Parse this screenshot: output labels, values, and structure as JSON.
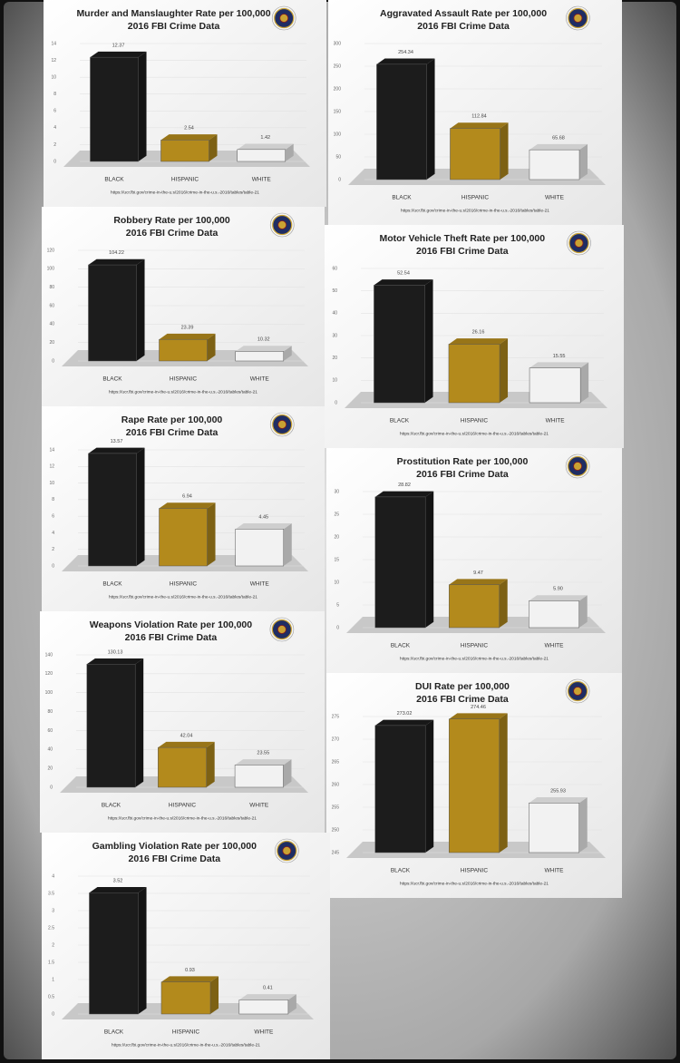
{
  "chart_data": [
    {
      "type": "bar",
      "title": "Murder and Manslaughter Rate per 100,000",
      "subtitle": "2016 FBI Crime Data",
      "categories": [
        "BLACK",
        "HISPANIC",
        "WHITE"
      ],
      "values": [
        12.37,
        2.54,
        1.42
      ],
      "colors": [
        "#1c1c1c",
        "#b38a1c",
        "#f2f2f2"
      ],
      "ylim": [
        0,
        14
      ],
      "yticks": [
        0,
        2,
        4,
        6,
        8,
        10,
        12,
        14
      ],
      "grid": true,
      "source": "https://ucr.fbi.gov/crime-in-the-u.s/2016/crime-in-the-u.s.-2016/tables/table-21"
    },
    {
      "type": "bar",
      "title": "Aggravated Assault Rate per 100,000",
      "subtitle": "2016 FBI Crime Data",
      "categories": [
        "BLACK",
        "HISPANIC",
        "WHITE"
      ],
      "values": [
        254.34,
        112.84,
        65.68
      ],
      "colors": [
        "#1c1c1c",
        "#b38a1c",
        "#f2f2f2"
      ],
      "ylim": [
        0,
        300
      ],
      "yticks": [
        0,
        50,
        100,
        150,
        200,
        250,
        300
      ],
      "grid": true,
      "source": "https://ucr.fbi.gov/crime-in-the-u.s/2016/crime-in-the-u.s.-2016/tables/table-21"
    },
    {
      "type": "bar",
      "title": "Robbery Rate per 100,000",
      "subtitle": "2016 FBI Crime Data",
      "categories": [
        "BLACK",
        "HISPANIC",
        "WHITE"
      ],
      "values": [
        104.22,
        23.39,
        10.32
      ],
      "colors": [
        "#1c1c1c",
        "#b38a1c",
        "#f2f2f2"
      ],
      "ylim": [
        0,
        120
      ],
      "yticks": [
        0,
        20,
        40,
        60,
        80,
        100,
        120
      ],
      "grid": true,
      "source": "https://ucr.fbi.gov/crime-in-the-u.s/2016/crime-in-the-u.s.-2016/tables/table-21"
    },
    {
      "type": "bar",
      "title": "Motor Vehicle Theft Rate per 100,000",
      "subtitle": "2016 FBI Crime Data",
      "categories": [
        "BLACK",
        "HISPANIC",
        "WHITE"
      ],
      "values": [
        52.54,
        26.16,
        15.55
      ],
      "colors": [
        "#1c1c1c",
        "#b38a1c",
        "#f2f2f2"
      ],
      "ylim": [
        0,
        60
      ],
      "yticks": [
        0,
        10,
        20,
        30,
        40,
        50,
        60
      ],
      "grid": true,
      "source": "https://ucr.fbi.gov/crime-in-the-u.s/2016/crime-in-the-u.s.-2016/tables/table-21"
    },
    {
      "type": "bar",
      "title": "Rape Rate per 100,000",
      "subtitle": "2016 FBI Crime Data",
      "categories": [
        "BLACK",
        "HISPANIC",
        "WHITE"
      ],
      "values": [
        13.57,
        6.94,
        4.45
      ],
      "colors": [
        "#1c1c1c",
        "#b38a1c",
        "#f2f2f2"
      ],
      "ylim": [
        0,
        14
      ],
      "yticks": [
        0,
        2,
        4,
        6,
        8,
        10,
        12,
        14
      ],
      "grid": true,
      "source": "https://ucr.fbi.gov/crime-in-the-u.s/2016/crime-in-the-u.s.-2016/tables/table-21"
    },
    {
      "type": "bar",
      "title": "Prostitution Rate per 100,000",
      "subtitle": "2016 FBI Crime Data",
      "categories": [
        "BLACK",
        "HISPANIC",
        "WHITE"
      ],
      "values": [
        28.82,
        9.47,
        5.9
      ],
      "value_labels": [
        "28.82",
        "9.47",
        "5.90"
      ],
      "colors": [
        "#1c1c1c",
        "#b38a1c",
        "#f2f2f2"
      ],
      "ylim": [
        0,
        30
      ],
      "yticks": [
        0,
        5,
        10,
        15,
        20,
        25,
        30
      ],
      "grid": true,
      "source": "https://ucr.fbi.gov/crime-in-the-u.s/2016/crime-in-the-u.s.-2016/tables/table-21"
    },
    {
      "type": "bar",
      "title": "Weapons Violation Rate per 100,000",
      "subtitle": "2016 FBI Crime Data",
      "categories": [
        "BLACK",
        "HISPANIC",
        "WHITE"
      ],
      "values": [
        130.13,
        42.04,
        23.55
      ],
      "colors": [
        "#1c1c1c",
        "#b38a1c",
        "#f2f2f2"
      ],
      "ylim": [
        0,
        140
      ],
      "yticks": [
        0,
        20,
        40,
        60,
        80,
        100,
        120,
        140
      ],
      "grid": true,
      "source": "https://ucr.fbi.gov/crime-in-the-u.s/2016/crime-in-the-u.s.-2016/tables/table-21"
    },
    {
      "type": "bar",
      "title": "DUI Rate per 100,000",
      "subtitle": "2016 FBI Crime Data",
      "categories": [
        "BLACK",
        "HISPANIC",
        "WHITE"
      ],
      "values": [
        273.02,
        274.46,
        255.93
      ],
      "colors": [
        "#1c1c1c",
        "#b38a1c",
        "#f2f2f2"
      ],
      "ylim": [
        245,
        275
      ],
      "yticks": [
        245,
        250,
        255,
        260,
        265,
        270,
        275
      ],
      "grid": true,
      "source": "https://ucr.fbi.gov/crime-in-the-u.s/2016/crime-in-the-u.s.-2016/tables/table-21"
    },
    {
      "type": "bar",
      "title": "Gambling Violation Rate per 100,000",
      "subtitle": "2016 FBI Crime Data",
      "categories": [
        "BLACK",
        "HISPANIC",
        "WHITE"
      ],
      "values": [
        3.52,
        0.93,
        0.41
      ],
      "colors": [
        "#1c1c1c",
        "#b38a1c",
        "#f2f2f2"
      ],
      "ylim": [
        0,
        4
      ],
      "yticks": [
        0,
        0.5,
        1,
        1.5,
        2,
        2.5,
        3,
        3.5,
        4
      ],
      "grid": true,
      "source": "https://ucr.fbi.gov/crime-in-the-u.s/2016/crime-in-the-u.s.-2016/tables/table-21"
    }
  ]
}
